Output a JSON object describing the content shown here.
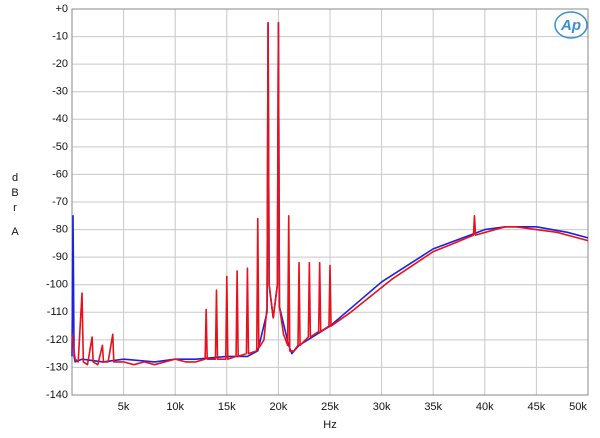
{
  "chart_data": {
    "type": "line",
    "x_label": "Hz",
    "y_label_lines": [
      "d",
      "B",
      "r",
      "A"
    ],
    "logo": "Ap",
    "xlim": [
      0,
      50000
    ],
    "ylim": [
      -140,
      0
    ],
    "xticks": [
      {
        "value": 5000,
        "label": "5k"
      },
      {
        "value": 10000,
        "label": "10k"
      },
      {
        "value": 15000,
        "label": "15k"
      },
      {
        "value": 20000,
        "label": "20k"
      },
      {
        "value": 25000,
        "label": "25k"
      },
      {
        "value": 30000,
        "label": "30k"
      },
      {
        "value": 35000,
        "label": "35k"
      },
      {
        "value": 40000,
        "label": "40k"
      },
      {
        "value": 45000,
        "label": "45k"
      },
      {
        "value": 50000,
        "label": "50k"
      }
    ],
    "yticks": [
      {
        "value": 0,
        "label": "+0"
      },
      -10,
      -20,
      -30,
      -40,
      -50,
      -60,
      -70,
      -80,
      -90,
      -100,
      -110,
      -120,
      -130,
      -140
    ],
    "grid": true,
    "series": [
      {
        "color": "#1f1fe0",
        "x": [
          0,
          100,
          200,
          300,
          1000,
          3000,
          5000,
          8000,
          10000,
          12000,
          15000,
          17000,
          18000,
          18900,
          19000,
          19100,
          19500,
          19900,
          20000,
          20100,
          21000,
          21300,
          22000,
          25000,
          30000,
          35000,
          40000,
          42000,
          45000,
          48000,
          50000
        ],
        "values": [
          -126,
          -75,
          -126,
          -128,
          -127,
          -128,
          -127,
          -128,
          -127,
          -127,
          -126,
          -126,
          -124,
          -110,
          -5,
          -100,
          -112,
          -100,
          -5,
          -108,
          -122,
          -125,
          -122,
          -115,
          -99,
          -87,
          -80,
          -79,
          -79,
          -81,
          -83
        ]
      },
      {
        "color": "#e8101a",
        "x": [
          0,
          300,
          600,
          970,
          1100,
          1500,
          1950,
          2050,
          2500,
          2950,
          3050,
          3500,
          3950,
          4050,
          5000,
          6000,
          7000,
          8000,
          9000,
          10000,
          11000,
          12000,
          12900,
          13000,
          13100,
          13900,
          14000,
          14100,
          14900,
          15000,
          15100,
          15900,
          16000,
          16100,
          16900,
          17000,
          17100,
          17900,
          18000,
          18100,
          18600,
          18900,
          19000,
          19100,
          19500,
          19900,
          20000,
          20100,
          20500,
          20900,
          21000,
          21100,
          21500,
          21900,
          22000,
          22100,
          22900,
          23000,
          23100,
          23900,
          24000,
          24100,
          24900,
          25000,
          25100,
          27000,
          29000,
          31000,
          33000,
          35000,
          37000,
          38900,
          39000,
          39100,
          41000,
          42000,
          43000,
          45000,
          47000,
          48000,
          49000,
          50000
        ],
        "values": [
          -118,
          -127,
          -128,
          -103,
          -128,
          -129,
          -119,
          -128,
          -129,
          -122,
          -128,
          -128,
          -118,
          -128,
          -128,
          -129,
          -128,
          -129,
          -128,
          -127,
          -128,
          -128,
          -127,
          -109,
          -127,
          -127,
          -102,
          -127,
          -127,
          -97,
          -127,
          -126,
          -95,
          -126,
          -125,
          -94,
          -125,
          -124,
          -76,
          -123,
          -120,
          -108,
          -5,
          -100,
          -112,
          -100,
          -5,
          -108,
          -118,
          -122,
          -75,
          -124,
          -124,
          -122,
          -92,
          -122,
          -119,
          -92,
          -119,
          -117,
          -92,
          -117,
          -115,
          -93,
          -115,
          -110,
          -104,
          -98,
          -93,
          -88,
          -85,
          -82,
          -75,
          -82,
          -80,
          -79,
          -79,
          -80,
          -81,
          -82,
          -83,
          -84
        ]
      }
    ]
  }
}
